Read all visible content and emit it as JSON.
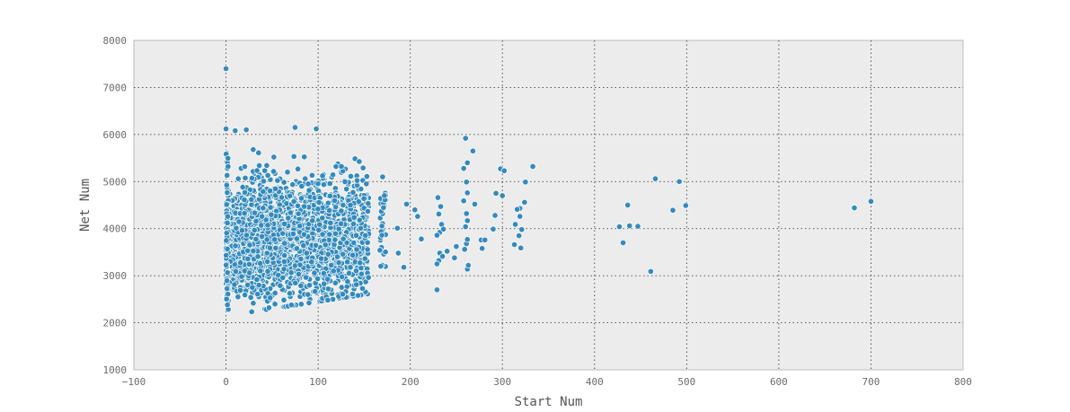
{
  "chart_data": {
    "type": "scatter",
    "title": "",
    "xlabel": "Start Num",
    "ylabel": "Net Num",
    "xlim": [
      -100,
      800
    ],
    "ylim": [
      1000,
      8000
    ],
    "x_ticks": [
      -100,
      0,
      100,
      200,
      300,
      400,
      500,
      600,
      700,
      800
    ],
    "y_ticks": [
      1000,
      2000,
      3000,
      4000,
      5000,
      6000,
      7000,
      8000
    ],
    "x_tick_labels": [
      "−100",
      "0",
      "100",
      "200",
      "300",
      "400",
      "500",
      "600",
      "700",
      "800"
    ],
    "y_tick_labels": [
      "1000",
      "2000",
      "3000",
      "4000",
      "5000",
      "6000",
      "7000",
      "8000"
    ],
    "grid": true,
    "marker_color": "#348abd",
    "background_color": "#ececec",
    "points": [
      [
        0,
        7400
      ],
      [
        0,
        6120
      ],
      [
        98,
        6120
      ],
      [
        75,
        6150
      ],
      [
        22,
        6100
      ],
      [
        10,
        6080
      ],
      [
        260,
        5920
      ],
      [
        466,
        5060
      ],
      [
        492,
        5000
      ],
      [
        333,
        5320
      ],
      [
        298,
        5270
      ],
      [
        302,
        5230
      ],
      [
        170,
        5100
      ],
      [
        230,
        4660
      ],
      [
        436,
        4500
      ],
      [
        499,
        4490
      ],
      [
        485,
        4390
      ],
      [
        427,
        4040
      ],
      [
        438,
        4060
      ],
      [
        447,
        4050
      ],
      [
        431,
        3700
      ],
      [
        461,
        3090
      ],
      [
        682,
        4440
      ],
      [
        700,
        4580
      ],
      [
        229,
        2700
      ],
      [
        193,
        3180
      ],
      [
        187,
        3480
      ],
      [
        168,
        3200
      ],
      [
        212,
        3780
      ],
      [
        205,
        4400
      ],
      [
        196,
        4520
      ],
      [
        208,
        4260
      ],
      [
        186,
        4010
      ],
      [
        250,
        3620
      ],
      [
        248,
        3380
      ],
      [
        270,
        4520
      ],
      [
        268,
        5650
      ],
      [
        262,
        5400
      ],
      [
        258,
        5280
      ],
      [
        293,
        4750
      ],
      [
        300,
        4700
      ],
      [
        325,
        4990
      ],
      [
        324,
        4560
      ],
      [
        319,
        4430
      ],
      [
        316,
        4410
      ],
      [
        314,
        4090
      ],
      [
        319,
        4260
      ],
      [
        321,
        3980
      ],
      [
        318,
        3850
      ],
      [
        313,
        3660
      ],
      [
        320,
        3590
      ],
      [
        292,
        4280
      ],
      [
        290,
        3990
      ],
      [
        277,
        3760
      ],
      [
        281,
        3760
      ],
      [
        278,
        3580
      ],
      [
        262,
        3140
      ],
      [
        263,
        3220
      ],
      [
        259,
        3560
      ],
      [
        261,
        3680
      ],
      [
        262,
        3770
      ],
      [
        260,
        4040
      ],
      [
        262,
        4170
      ],
      [
        261,
        4320
      ],
      [
        258,
        4590
      ],
      [
        262,
        4760
      ],
      [
        261,
        4990
      ],
      [
        232,
        3480
      ],
      [
        235,
        3410
      ],
      [
        240,
        3520
      ],
      [
        231,
        3320
      ],
      [
        229,
        3250
      ],
      [
        232,
        3920
      ],
      [
        234,
        4090
      ],
      [
        231,
        4310
      ],
      [
        233,
        4470
      ],
      [
        236,
        3990
      ],
      [
        229,
        3860
      ]
    ]
  }
}
